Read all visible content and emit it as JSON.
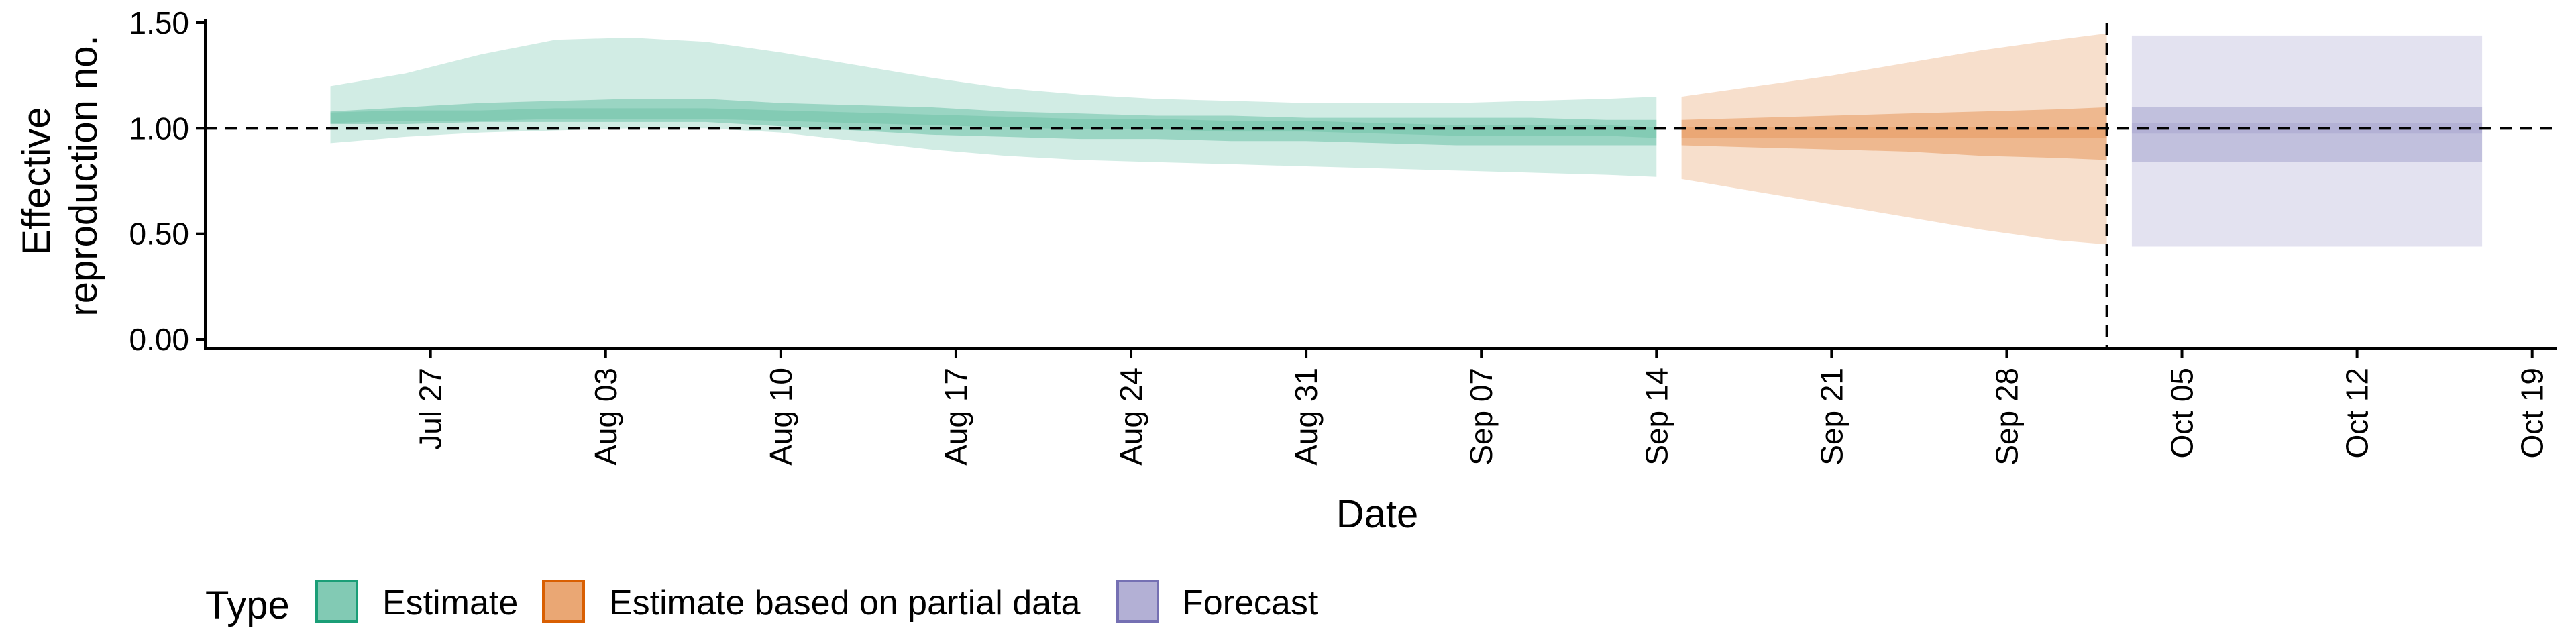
{
  "chart_data": {
    "type": "area",
    "xlabel": "Date",
    "ylabel_lines": [
      "Effective",
      "reproduction no."
    ],
    "xlim": [
      "2021-07-18",
      "2021-10-20"
    ],
    "ylim": [
      0,
      1.5
    ],
    "y_ticks": [
      0,
      0.5,
      1.0,
      1.5
    ],
    "y_tick_labels": [
      "0.00",
      "0.50",
      "1.00",
      "1.50"
    ],
    "x_ticks": [
      "2021-07-27",
      "2021-08-03",
      "2021-08-10",
      "2021-08-17",
      "2021-08-24",
      "2021-08-31",
      "2021-09-07",
      "2021-09-14",
      "2021-09-21",
      "2021-09-28",
      "2021-10-05",
      "2021-10-12",
      "2021-10-19"
    ],
    "x_tick_labels": [
      "Jul 27",
      "Aug 03",
      "Aug 10",
      "Aug 17",
      "Aug 24",
      "Aug 31",
      "Sep 07",
      "Sep 14",
      "Sep 21",
      "Sep 28",
      "Oct 05",
      "Oct 12",
      "Oct 19"
    ],
    "reference_line_y": 1.0,
    "vertical_line_x": "2021-10-02",
    "grid": false,
    "legend": {
      "title": "Type",
      "position": "bottom-left",
      "items": [
        "Estimate",
        "Estimate based on partial data",
        "Forecast"
      ]
    },
    "series": [
      {
        "name": "Estimate",
        "color": "#1b9e77",
        "dates": [
          "2021-07-23",
          "2021-07-26",
          "2021-07-29",
          "2021-08-01",
          "2021-08-04",
          "2021-08-07",
          "2021-08-10",
          "2021-08-13",
          "2021-08-16",
          "2021-08-19",
          "2021-08-22",
          "2021-08-25",
          "2021-08-28",
          "2021-08-31",
          "2021-09-03",
          "2021-09-06",
          "2021-09-09",
          "2021-09-12",
          "2021-09-14"
        ],
        "median": [
          1.05,
          1.06,
          1.06,
          1.07,
          1.07,
          1.07,
          1.06,
          1.05,
          1.04,
          1.03,
          1.02,
          1.02,
          1.01,
          1.01,
          1.0,
          0.99,
          0.99,
          0.99,
          0.98
        ],
        "ci50": [
          [
            1.02,
            1.08
          ],
          [
            1.02,
            1.1
          ],
          [
            1.03,
            1.12
          ],
          [
            1.03,
            1.13
          ],
          [
            1.03,
            1.14
          ],
          [
            1.03,
            1.14
          ],
          [
            1.01,
            1.12
          ],
          [
            0.99,
            1.11
          ],
          [
            0.97,
            1.1
          ],
          [
            0.96,
            1.08
          ],
          [
            0.95,
            1.07
          ],
          [
            0.95,
            1.06
          ],
          [
            0.94,
            1.06
          ],
          [
            0.94,
            1.05
          ],
          [
            0.93,
            1.05
          ],
          [
            0.92,
            1.05
          ],
          [
            0.92,
            1.05
          ],
          [
            0.92,
            1.04
          ],
          [
            0.92,
            1.04
          ]
        ],
        "ci90": [
          [
            0.93,
            1.2
          ],
          [
            0.96,
            1.26
          ],
          [
            0.98,
            1.35
          ],
          [
            0.99,
            1.42
          ],
          [
            1.0,
            1.43
          ],
          [
            1.0,
            1.41
          ],
          [
            0.98,
            1.36
          ],
          [
            0.94,
            1.3
          ],
          [
            0.9,
            1.24
          ],
          [
            0.87,
            1.19
          ],
          [
            0.85,
            1.16
          ],
          [
            0.84,
            1.14
          ],
          [
            0.83,
            1.13
          ],
          [
            0.82,
            1.12
          ],
          [
            0.81,
            1.12
          ],
          [
            0.8,
            1.12
          ],
          [
            0.79,
            1.13
          ],
          [
            0.78,
            1.14
          ],
          [
            0.77,
            1.15
          ]
        ]
      },
      {
        "name": "Estimate based on partial data",
        "color": "#d95f02",
        "dates": [
          "2021-09-15",
          "2021-09-18",
          "2021-09-21",
          "2021-09-24",
          "2021-09-27",
          "2021-09-30",
          "2021-10-02"
        ],
        "median": [
          0.98,
          0.98,
          0.98,
          0.98,
          0.98,
          0.98,
          0.98
        ],
        "ci50": [
          [
            0.92,
            1.04
          ],
          [
            0.91,
            1.05
          ],
          [
            0.9,
            1.06
          ],
          [
            0.89,
            1.07
          ],
          [
            0.87,
            1.08
          ],
          [
            0.86,
            1.09
          ],
          [
            0.85,
            1.1
          ]
        ],
        "ci90": [
          [
            0.76,
            1.15
          ],
          [
            0.7,
            1.2
          ],
          [
            0.64,
            1.25
          ],
          [
            0.58,
            1.31
          ],
          [
            0.52,
            1.37
          ],
          [
            0.47,
            1.42
          ],
          [
            0.45,
            1.45
          ]
        ]
      },
      {
        "name": "Forecast",
        "color": "#7570b3",
        "dates": [
          "2021-10-03",
          "2021-10-17"
        ],
        "median": [
          1.0,
          1.0
        ],
        "ci50": [
          [
            0.84,
            1.1
          ],
          [
            0.84,
            1.1
          ]
        ],
        "ci90": [
          [
            0.44,
            1.44
          ],
          [
            0.44,
            1.44
          ]
        ]
      }
    ]
  }
}
